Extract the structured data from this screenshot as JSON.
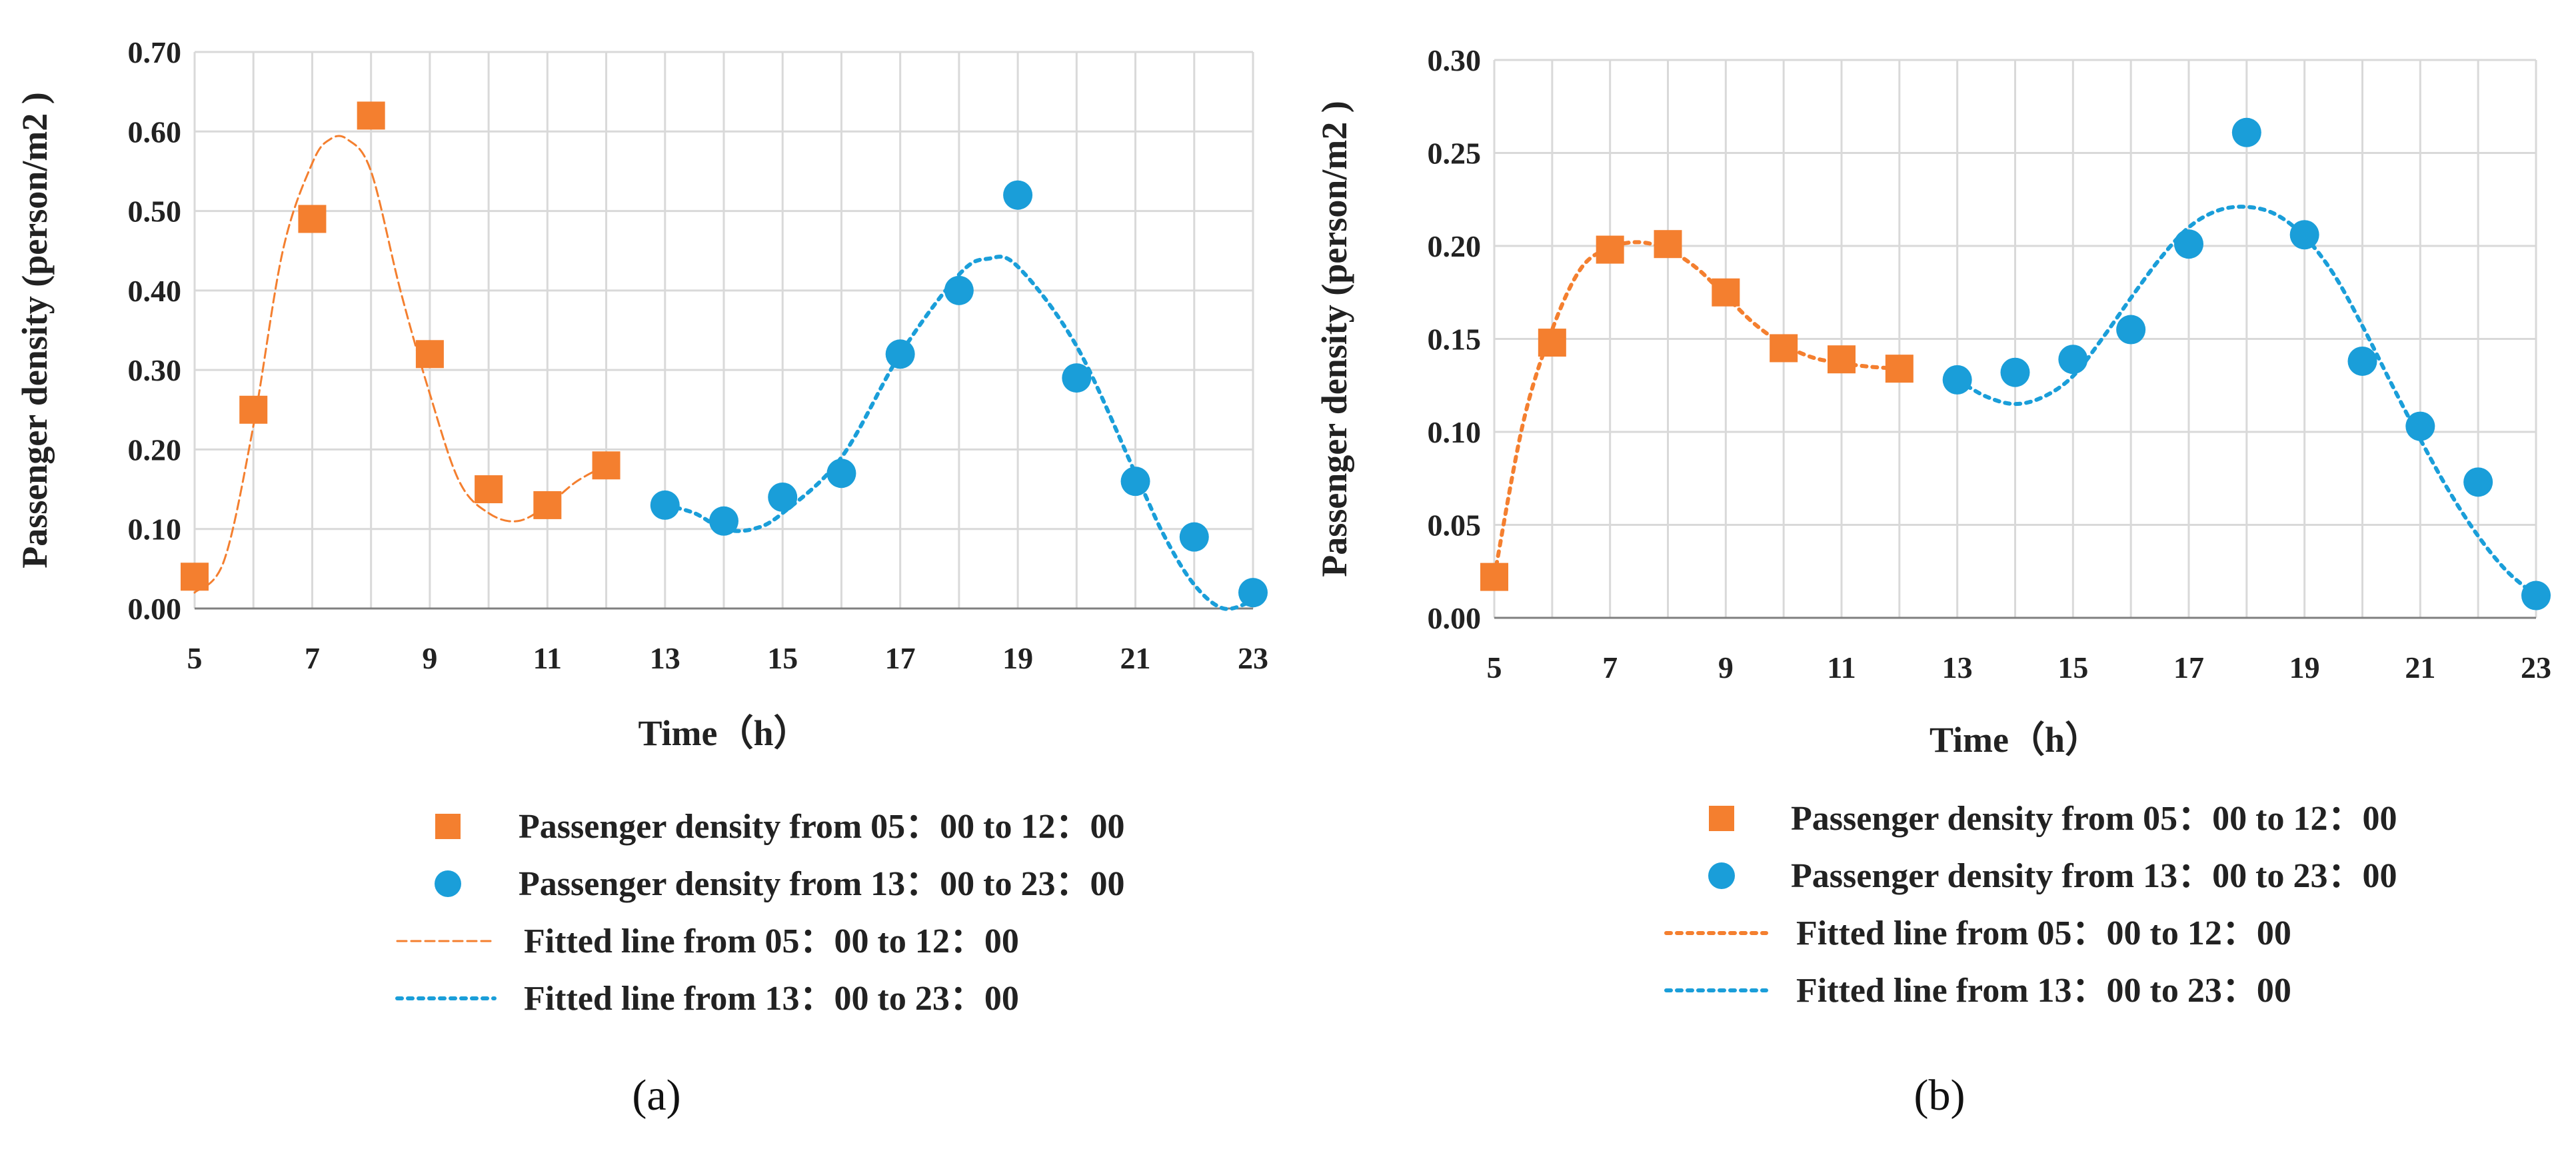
{
  "colors": {
    "orange": "#F47F2F",
    "blue": "#1A9ED9",
    "grid": "#D9D9D9"
  },
  "chart_data": [
    {
      "type": "scatter",
      "panel_label": "(a)",
      "xlabel": "Time（h）",
      "ylabel": "Passenger density (person/m2 )",
      "xlim": [
        5,
        23
      ],
      "ylim": [
        0,
        0.7
      ],
      "xticks": [
        5,
        7,
        9,
        11,
        13,
        15,
        17,
        19,
        21,
        23
      ],
      "yticks": [
        "0.00",
        "0.10",
        "0.20",
        "0.30",
        "0.40",
        "0.50",
        "0.60",
        "0.70"
      ],
      "series": [
        {
          "name": "Passenger density from 05：00 to 12：00",
          "marker": "square",
          "color": "#F47F2F",
          "x": [
            5,
            6,
            7,
            8,
            9,
            10,
            11,
            12
          ],
          "y": [
            0.04,
            0.25,
            0.49,
            0.62,
            0.32,
            0.15,
            0.13,
            0.18
          ]
        },
        {
          "name": "Passenger density from 13：00 to 23：00",
          "marker": "circle",
          "color": "#1A9ED9",
          "x": [
            13,
            14,
            15,
            16,
            17,
            18,
            19,
            20,
            21,
            22,
            23
          ],
          "y": [
            0.13,
            0.11,
            0.14,
            0.17,
            0.32,
            0.4,
            0.52,
            0.29,
            0.16,
            0.09,
            0.02
          ]
        }
      ],
      "fits": [
        {
          "name": "Fitted line from 05：00 to 12：00",
          "color": "#F47F2F",
          "style": "dashed",
          "x": [
            5,
            5.5,
            6,
            6.5,
            7,
            7.3,
            7.6,
            8,
            8.5,
            9,
            9.5,
            10,
            10.5,
            11,
            11.5,
            12
          ],
          "y": [
            0.02,
            0.06,
            0.23,
            0.45,
            0.56,
            0.59,
            0.59,
            0.55,
            0.4,
            0.27,
            0.16,
            0.12,
            0.11,
            0.13,
            0.16,
            0.18
          ]
        },
        {
          "name": "Fitted line from 13：00 to 23：00",
          "color": "#1A9ED9",
          "style": "dotted",
          "x": [
            13,
            13.5,
            14,
            14.5,
            15,
            16,
            17,
            18,
            18.5,
            19,
            20,
            21,
            21.5,
            22,
            22.5,
            23
          ],
          "y": [
            0.13,
            0.12,
            0.1,
            0.1,
            0.12,
            0.19,
            0.32,
            0.42,
            0.44,
            0.43,
            0.33,
            0.17,
            0.09,
            0.03,
            0.0,
            0.01
          ]
        }
      ]
    },
    {
      "type": "scatter",
      "panel_label": "(b)",
      "xlabel": "Time（h）",
      "ylabel": "Passenger density (person/m2 )",
      "xlim": [
        5,
        23
      ],
      "ylim": [
        0,
        0.3
      ],
      "xticks": [
        5,
        7,
        9,
        11,
        13,
        15,
        17,
        19,
        21,
        23
      ],
      "yticks": [
        "0.00",
        "0.05",
        "0.10",
        "0.15",
        "0.20",
        "0.25",
        "0.30"
      ],
      "series": [
        {
          "name": "Passenger density from 05：00 to 12：00",
          "marker": "square",
          "color": "#F47F2F",
          "x": [
            5,
            6,
            7,
            8,
            9,
            10,
            11,
            12
          ],
          "y": [
            0.022,
            0.148,
            0.198,
            0.201,
            0.175,
            0.145,
            0.139,
            0.134
          ]
        },
        {
          "name": "Passenger density from 13：00 to 23：00",
          "marker": "circle",
          "color": "#1A9ED9",
          "x": [
            13,
            14,
            15,
            16,
            17,
            18,
            19,
            20,
            21,
            22,
            23
          ],
          "y": [
            0.128,
            0.132,
            0.139,
            0.155,
            0.201,
            0.261,
            0.206,
            0.138,
            0.103,
            0.073,
            0.012
          ]
        }
      ],
      "fits": [
        {
          "name": "Fitted line from 05：00 to 12：00",
          "color": "#F47F2F",
          "style": "dotted",
          "x": [
            5,
            5.5,
            6,
            6.5,
            7,
            7.5,
            8,
            8.5,
            9,
            9.5,
            10,
            10.5,
            11,
            11.5,
            12
          ],
          "y": [
            0.022,
            0.105,
            0.155,
            0.188,
            0.199,
            0.202,
            0.198,
            0.188,
            0.173,
            0.158,
            0.147,
            0.14,
            0.137,
            0.135,
            0.134
          ]
        },
        {
          "name": "Fitted line from 13：00 to 23：00",
          "color": "#1A9ED9",
          "style": "dotted",
          "x": [
            13,
            13.5,
            14,
            14.5,
            15,
            15.5,
            16,
            16.5,
            17,
            17.5,
            18,
            18.5,
            19,
            19.5,
            20,
            20.5,
            21,
            21.5,
            22,
            22.5,
            23
          ],
          "y": [
            0.128,
            0.119,
            0.115,
            0.119,
            0.13,
            0.15,
            0.172,
            0.193,
            0.21,
            0.219,
            0.221,
            0.217,
            0.205,
            0.185,
            0.157,
            0.126,
            0.096,
            0.068,
            0.044,
            0.025,
            0.012
          ]
        }
      ]
    }
  ]
}
